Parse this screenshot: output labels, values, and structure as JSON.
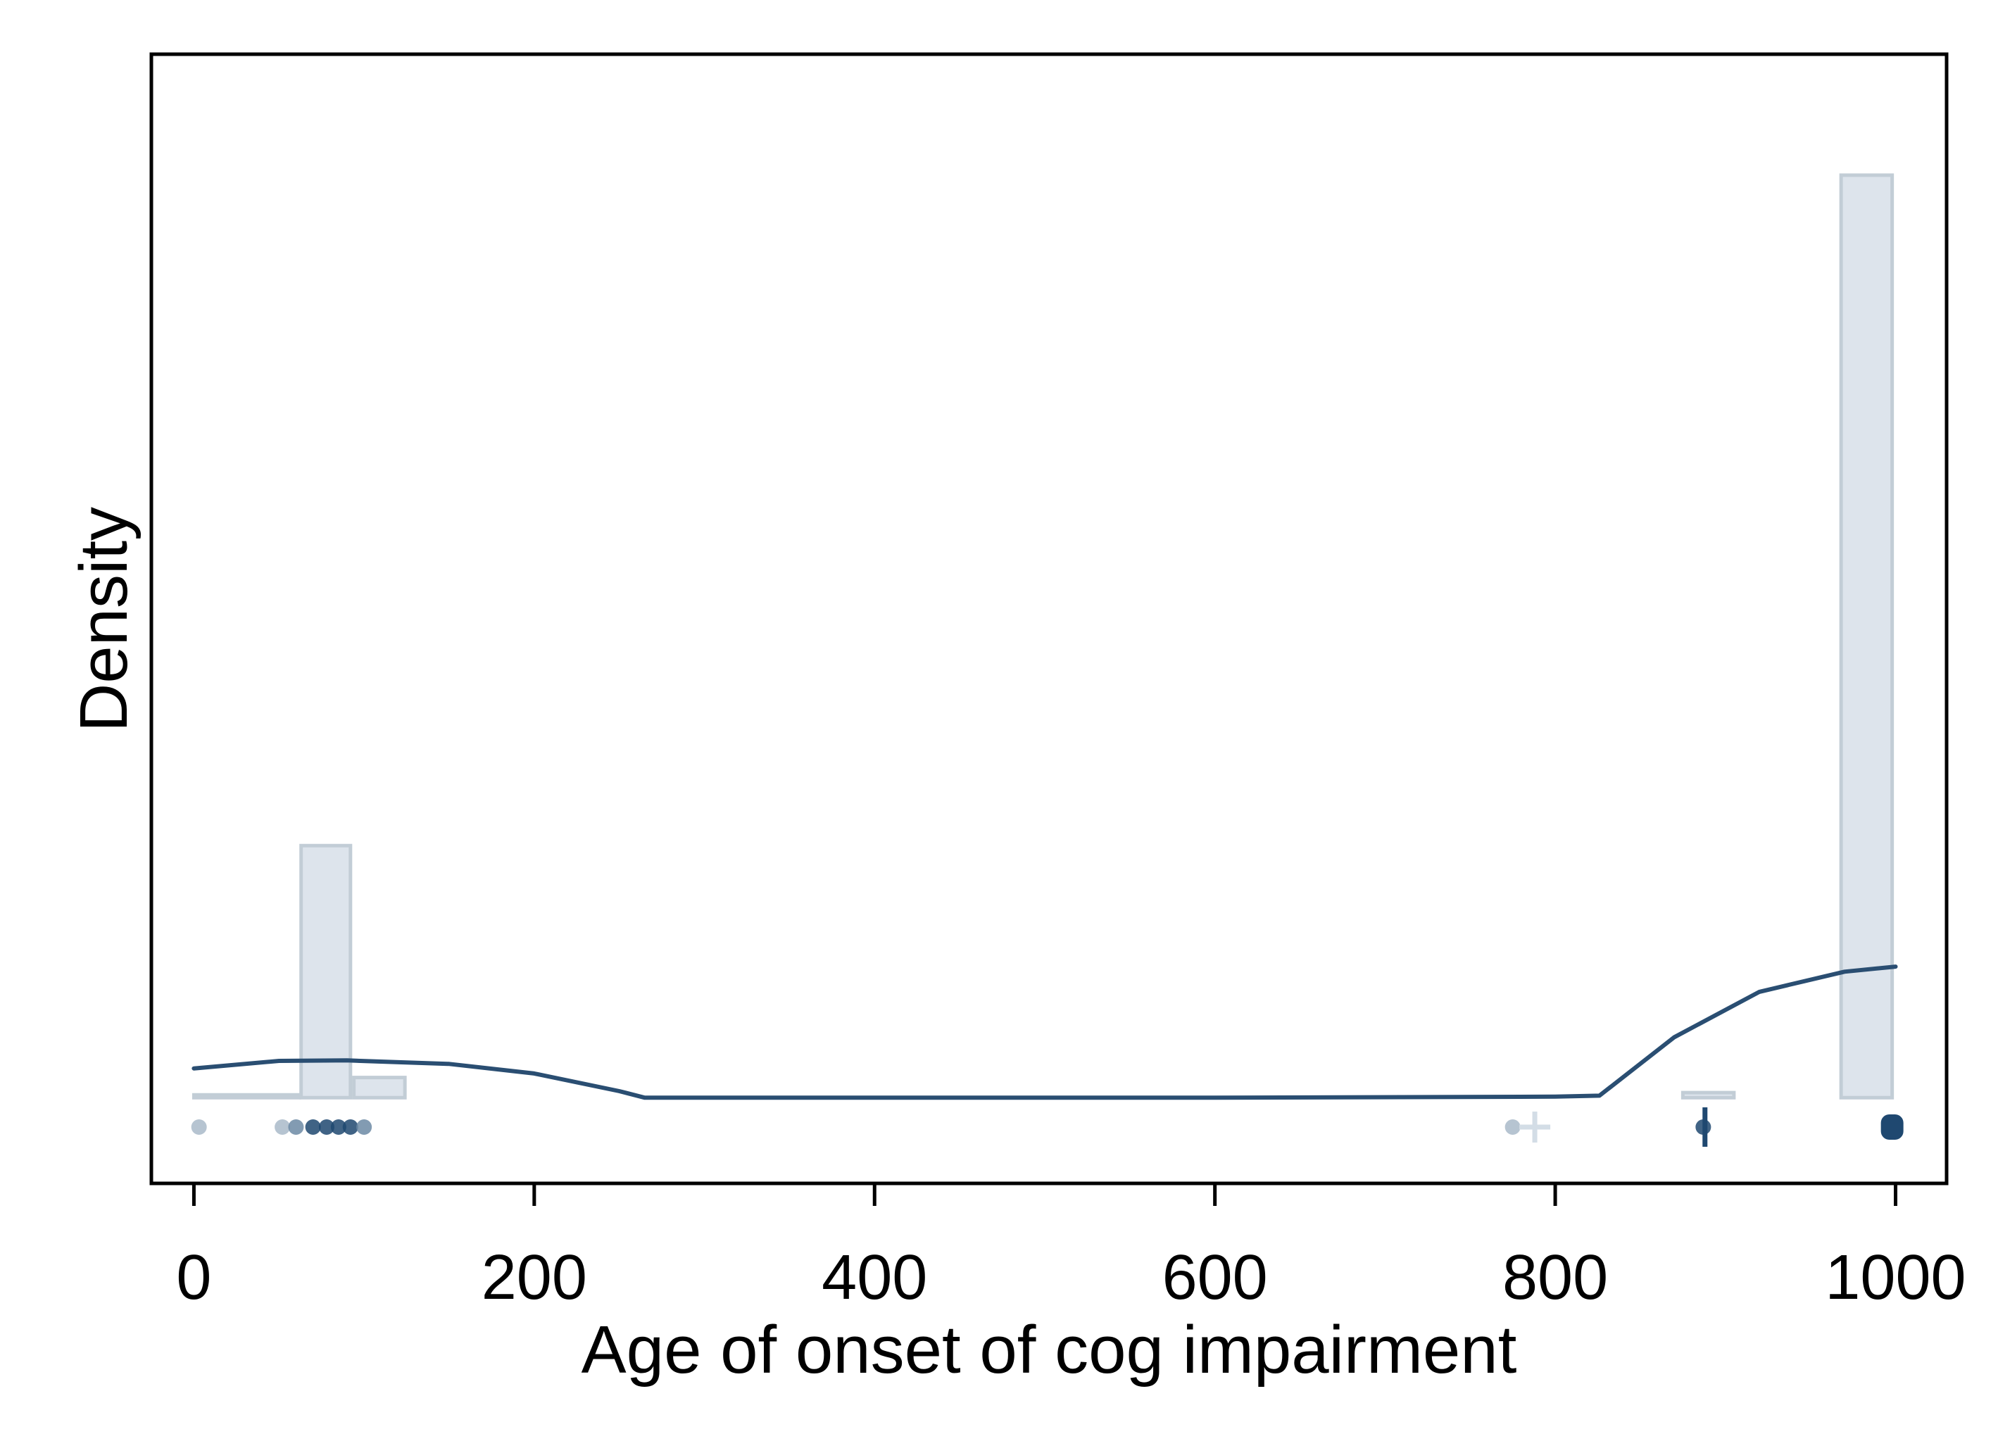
{
  "chart_data": {
    "type": "histogram",
    "title": "",
    "xlabel": "Age of onset of cog impairment",
    "ylabel": "Density",
    "xlim": [
      -25,
      1030
    ],
    "ylim": [
      -0.0017,
      0.0207
    ],
    "x_ticks": [
      0,
      200,
      400,
      600,
      800,
      1000
    ],
    "x_tick_labels": [
      "0",
      "200",
      "400",
      "600",
      "800",
      "1000"
    ],
    "y_ticks_shown": false,
    "grid": false,
    "legend": "none",
    "histogram_bins": [
      {
        "x0": 0,
        "x1": 62,
        "density": 0.0
      },
      {
        "x0": 63,
        "x1": 92,
        "density": 0.005
      },
      {
        "x0": 94,
        "x1": 124,
        "density": 0.0004
      },
      {
        "x0": 875,
        "x1": 905,
        "density": 0.0001
      },
      {
        "x0": 968,
        "x1": 998,
        "density": 0.0183
      }
    ],
    "density_curve": {
      "x": [
        0,
        50,
        90,
        150,
        200,
        250,
        265,
        400,
        600,
        800,
        826,
        870,
        920,
        970,
        1000
      ],
      "y": [
        0.00058,
        0.00073,
        0.00074,
        0.00067,
        0.00048,
        0.00013,
        0.0,
        0.0,
        0.0,
        2e-05,
        4e-05,
        0.0012,
        0.0021,
        0.0025,
        0.0026
      ]
    },
    "observations": {
      "markers": [
        {
          "x": 3,
          "symbol": "dot",
          "tone": "light"
        },
        {
          "x": 52,
          "symbol": "dot",
          "tone": "light"
        },
        {
          "x": 60,
          "symbol": "dot",
          "tone": "medium"
        },
        {
          "x": 70,
          "symbol": "dot",
          "tone": "dark"
        },
        {
          "x": 78,
          "symbol": "dot",
          "tone": "dark"
        },
        {
          "x": 85,
          "symbol": "dot",
          "tone": "dark"
        },
        {
          "x": 92,
          "symbol": "dot",
          "tone": "dark"
        },
        {
          "x": 100,
          "symbol": "dot",
          "tone": "medium"
        },
        {
          "x": 775,
          "symbol": "dot",
          "tone": "light"
        },
        {
          "x": 788,
          "symbol": "plus",
          "tone": "faint"
        },
        {
          "x": 887,
          "symbol": "dot",
          "tone": "dark"
        },
        {
          "x": 888,
          "symbol": "vbar",
          "tone": "dark"
        },
        {
          "x": 998,
          "symbol": "blob",
          "tone": "dark"
        }
      ]
    },
    "colors": {
      "axis": "#000000",
      "bar_fill": "#dde4ec",
      "bar_edge": "#c2cdd6",
      "curve": "#2a4e72",
      "dot_dark": "#1f4870",
      "dot_medium": "#6c89a5",
      "dot_light": "#a9bac9",
      "dot_faint": "#d3dde6"
    }
  }
}
